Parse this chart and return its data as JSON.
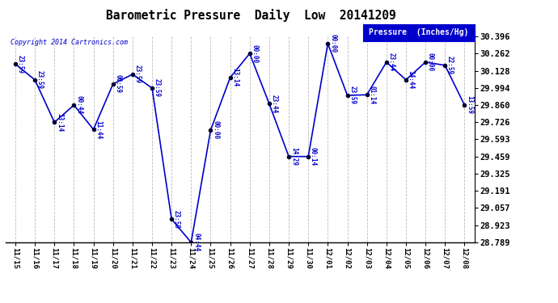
{
  "title": "Barometric Pressure  Daily  Low  20141209",
  "copyright": "Copyright 2014 Cartronics.com",
  "legend_label": "Pressure  (Inches/Hg)",
  "x_labels": [
    "11/15",
    "11/16",
    "11/17",
    "11/18",
    "11/19",
    "11/20",
    "11/21",
    "11/22",
    "11/23",
    "11/24",
    "11/25",
    "11/26",
    "11/27",
    "11/28",
    "11/29",
    "11/30",
    "12/01",
    "12/02",
    "12/03",
    "12/04",
    "12/05",
    "12/06",
    "12/07",
    "12/08"
  ],
  "y_values": [
    30.18,
    30.057,
    29.726,
    29.86,
    29.67,
    30.024,
    30.1,
    29.993,
    28.97,
    28.789,
    29.665,
    30.075,
    30.262,
    29.87,
    29.459,
    29.459,
    30.34,
    29.936,
    29.94,
    30.195,
    30.057,
    30.195,
    30.17,
    29.86
  ],
  "point_labels": [
    "23:59",
    "23:59",
    "13:14",
    "00:44",
    "11:44",
    "00:59",
    "23:59",
    "23:59",
    "23:59",
    "04:44",
    "00:00",
    "13:14",
    "00:00",
    "23:44",
    "14:29",
    "00:14",
    "00:00",
    "23:59",
    "01:14",
    "23:44",
    "14:44",
    "00:00",
    "22:59",
    "13:59"
  ],
  "ylim_min": 28.789,
  "ylim_max": 30.396,
  "yticks": [
    28.789,
    28.923,
    29.057,
    29.191,
    29.325,
    29.459,
    29.593,
    29.726,
    29.86,
    29.994,
    30.128,
    30.262,
    30.396
  ],
  "line_color": "#0000cc",
  "marker_color": "#000033",
  "bg_color": "#ffffff",
  "grid_color": "#bbbbbb",
  "title_color": "#000000",
  "label_color": "#0000cc",
  "copyright_color": "#0000cc",
  "legend_bg": "#0000cc",
  "legend_text_color": "#ffffff"
}
